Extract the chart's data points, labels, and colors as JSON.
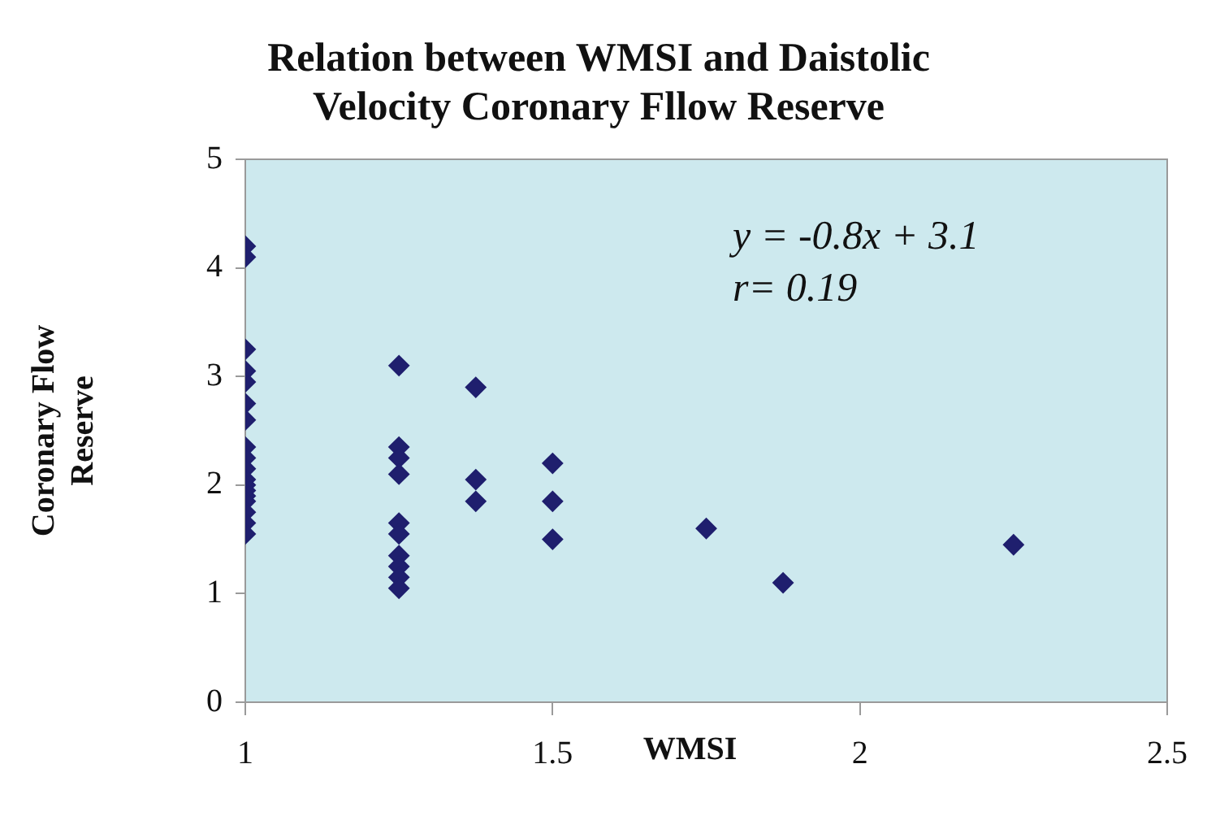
{
  "chart_data": {
    "type": "scatter",
    "title": "Relation between WMSI and Daistolic Velocity Coronary Fllow Reserve",
    "xlabel": "WMSI",
    "ylabel": "Coronary Flow Reserve",
    "series": [
      {
        "color": "#1f1f6e",
        "x": [
          1,
          1,
          1,
          1,
          1,
          1,
          1,
          1,
          1,
          1,
          1,
          1,
          1,
          1,
          1,
          1,
          1,
          1,
          1.25,
          1.25,
          1.25,
          1.25,
          1.25,
          1.25,
          1.25,
          1.25,
          1.25,
          1.25,
          1.375,
          1.375,
          1.375,
          1.5,
          1.5,
          1.5,
          1.75,
          1.875,
          2.25
        ],
        "values": [
          4.2,
          4.1,
          3.25,
          3.05,
          2.95,
          2.75,
          2.6,
          2.35,
          2.25,
          2.15,
          2.05,
          2.0,
          1.95,
          1.9,
          1.85,
          1.75,
          1.65,
          1.55,
          3.1,
          2.35,
          2.25,
          2.1,
          1.65,
          1.55,
          1.35,
          1.25,
          1.15,
          1.05,
          2.9,
          2.05,
          1.85,
          2.2,
          1.85,
          1.5,
          1.6,
          1.1,
          1.45
        ]
      }
    ],
    "annotations": [
      "y = -0.8x + 3.1",
      "r= 0.19"
    ],
    "xlim": [
      1,
      2.5
    ],
    "xticks": [
      1,
      1.5,
      2,
      2.5
    ],
    "ylim": [
      0,
      5
    ],
    "yticks": [
      0,
      1,
      2,
      3,
      4,
      5
    ],
    "grid": false,
    "legend": false,
    "marker": "diamond"
  }
}
